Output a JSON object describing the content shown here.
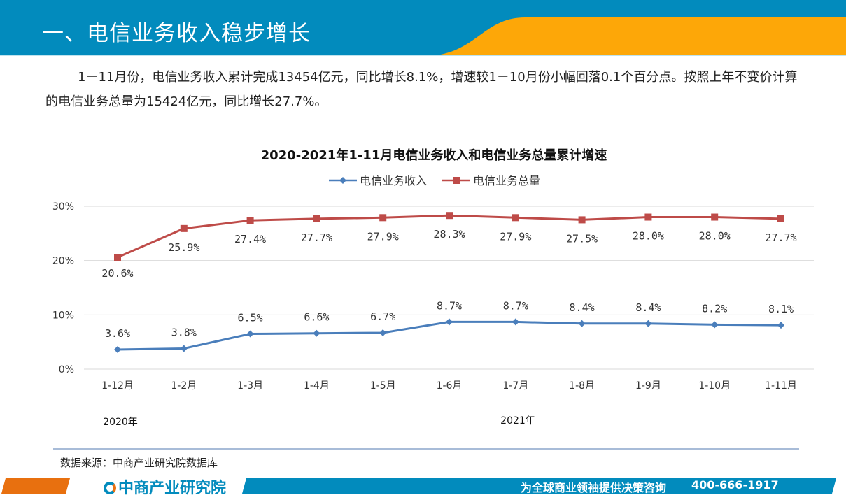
{
  "header": {
    "title": "一、电信业务收入稳步增长"
  },
  "paragraph": "1－11月份，电信业务收入累计完成13454亿元，同比增长8.1%，增速较1－10月份小幅回落0.1个百分点。按照上年不变价计算的电信业务总量为15424亿元，同比增长27.7%。",
  "source": "数据来源：中商产业研究院数据库",
  "footer": {
    "logo": "中商产业研究院",
    "slogan": "为全球商业领袖提供决策咨询",
    "phone": "400-666-1917"
  },
  "colors": {
    "header": "#028bbd",
    "accent": "#fda708",
    "footer_left": "#e8700f"
  },
  "chart_data": {
    "type": "line",
    "title": "2020-2021年1-11月电信业务收入和电信业务总量累计增速",
    "categories": [
      "1-12月",
      "1-2月",
      "1-3月",
      "1-4月",
      "1-5月",
      "1-6月",
      "1-7月",
      "1-8月",
      "1-9月",
      "1-10月",
      "1-11月"
    ],
    "year_labels": [
      "2020年",
      "2021年"
    ],
    "yticks": [
      "0%",
      "10%",
      "20%",
      "30%"
    ],
    "ylim": [
      0,
      30
    ],
    "grid": true,
    "legend": "top",
    "series": [
      {
        "name": "电信业务收入",
        "color": "#4a7ebb",
        "marker": "diamond",
        "values": [
          3.6,
          3.8,
          6.5,
          6.6,
          6.7,
          8.7,
          8.7,
          8.4,
          8.4,
          8.2,
          8.1
        ]
      },
      {
        "name": "电信业务总量",
        "color": "#be4b48",
        "marker": "square",
        "values": [
          20.6,
          25.9,
          27.4,
          27.7,
          27.9,
          28.3,
          27.9,
          27.5,
          28.0,
          28.0,
          27.7
        ]
      }
    ]
  }
}
